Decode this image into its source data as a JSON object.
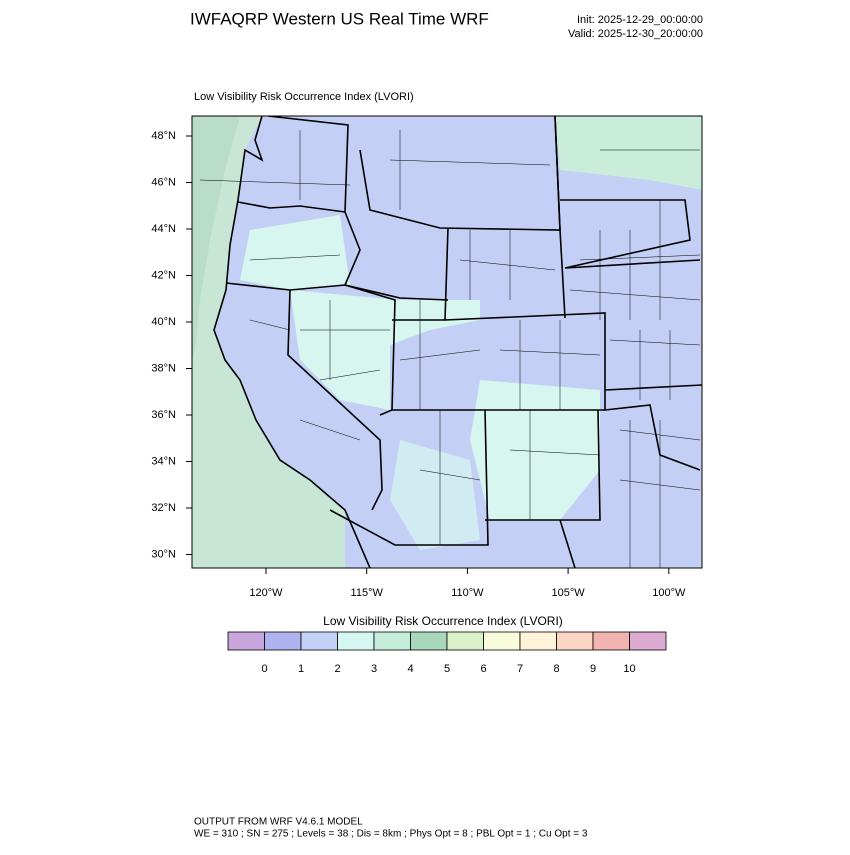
{
  "header": {
    "title": "IWFAQRP Western US Real Time WRF",
    "init": "Init: 2025-12-29_00:00:00",
    "valid": "Valid: 2025-12-30_20:00:00"
  },
  "map": {
    "subtitle": "Low Visibility Risk Occurrence Index   (LVORI)",
    "lat_labels": [
      "48°N",
      "46°N",
      "44°N",
      "42°N",
      "40°N",
      "38°N",
      "36°N",
      "34°N",
      "32°N",
      "30°N"
    ],
    "lon_labels": [
      "120°W",
      "115°W",
      "110°W",
      "105°W",
      "100°W"
    ]
  },
  "colorbar": {
    "title": "Low Visibility Risk Occurrence Index  (LVORI)",
    "colors": [
      "#c9a6dc",
      "#aeb2ee",
      "#c3d1f7",
      "#d5f7f1",
      "#c6ecda",
      "#a9d7bc",
      "#d9f1c9",
      "#f8fcda",
      "#fff4d9",
      "#fcd5c5",
      "#f2b4b1",
      "#dcaad2"
    ],
    "labels": [
      0,
      1,
      2,
      3,
      4,
      5,
      6,
      7,
      8,
      9,
      10
    ]
  },
  "footer": {
    "line1": "OUTPUT FROM WRF V4.6.1 MODEL",
    "line2": "WE = 310 ; SN = 275 ; Levels = 38 ; Dis = 8km ; Phys Opt = 8 ; PBL Opt = 1 ; Cu Opt = 3"
  }
}
